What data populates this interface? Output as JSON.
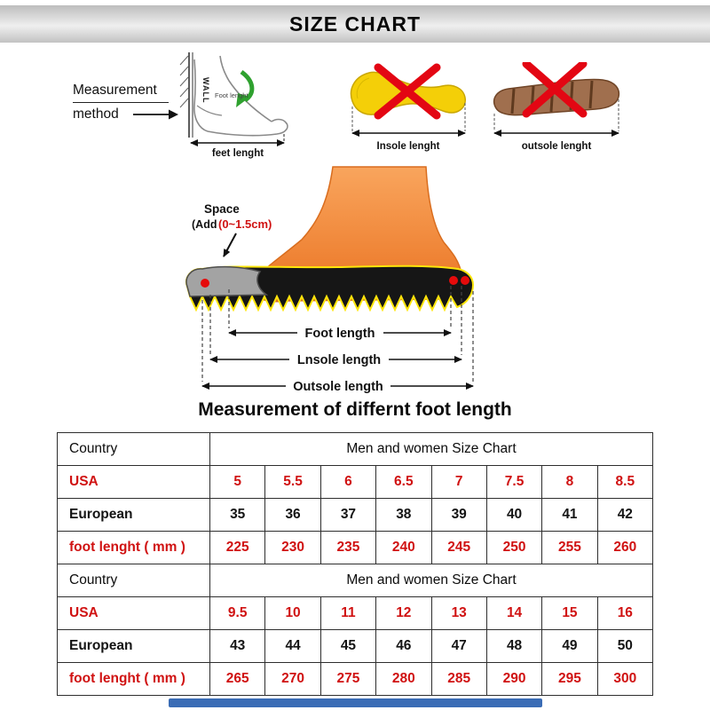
{
  "header": {
    "title": "SIZE CHART"
  },
  "method": {
    "label_line1": "Measurement",
    "label_line2": "method",
    "wall_label": "WALL",
    "items": [
      {
        "caption": "feet lenght",
        "inner_label": "Foot lenght"
      },
      {
        "caption": "Insole lenght"
      },
      {
        "caption": "outsole lenght"
      }
    ]
  },
  "diagram": {
    "space_line1": "Space",
    "space_line2_prefix": "(Add",
    "space_line2_value": "(0~1.5cm)",
    "foot_length_label": "Foot length",
    "insole_length_label": "Lnsole length",
    "outsole_length_label": "Outsole length",
    "title": "Measurement of differnt foot length"
  },
  "table": {
    "sections": [
      {
        "country_label": "Country",
        "chart_label": "Men and women Size Chart",
        "rows": [
          {
            "label": "USA",
            "style": "red",
            "values": [
              "5",
              "5.5",
              "6",
              "6.5",
              "7",
              "7.5",
              "8",
              "8.5"
            ]
          },
          {
            "label": "European",
            "style": "dark",
            "values": [
              "35",
              "36",
              "37",
              "38",
              "39",
              "40",
              "41",
              "42"
            ]
          },
          {
            "label": "foot lenght ( mm )",
            "style": "red",
            "values": [
              "225",
              "230",
              "235",
              "240",
              "245",
              "250",
              "255",
              "260"
            ]
          }
        ]
      },
      {
        "country_label": "Country",
        "chart_label": "Men and women Size Chart",
        "rows": [
          {
            "label": "USA",
            "style": "red",
            "values": [
              "9.5",
              "10",
              "11",
              "12",
              "13",
              "14",
              "15",
              "16"
            ]
          },
          {
            "label": "European",
            "style": "dark",
            "values": [
              "43",
              "44",
              "45",
              "46",
              "47",
              "48",
              "49",
              "50"
            ]
          },
          {
            "label": "foot lenght ( mm )",
            "style": "red",
            "values": [
              "265",
              "270",
              "275",
              "280",
              "285",
              "290",
              "295",
              "300"
            ]
          }
        ]
      }
    ]
  },
  "colors": {
    "accent_red": "#d01212",
    "cross_red": "#e30613",
    "insole_yellow": "#f4cf08",
    "outsole_brown": "#a06f4e",
    "foot_orange": "#ef7f2e",
    "sole_outline_yellow": "#ffe60a",
    "bottom_bar_blue": "#3a6cb5"
  }
}
